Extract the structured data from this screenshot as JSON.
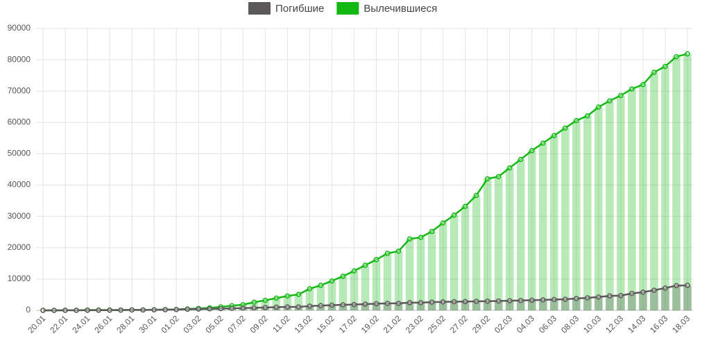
{
  "chart_data": {
    "type": "bar-line",
    "categories": [
      "20.01",
      null,
      "22.01",
      null,
      "24.01",
      null,
      "26.01",
      null,
      "28.01",
      null,
      "30.01",
      null,
      "01.02",
      null,
      "03.02",
      null,
      "05.02",
      null,
      "07.02",
      null,
      "09.02",
      null,
      "11.02",
      null,
      "13.02",
      null,
      "15.02",
      null,
      "17.02",
      null,
      "19.02",
      null,
      "21.02",
      null,
      "23.02",
      null,
      "25.02",
      null,
      "27.02",
      null,
      "29.02",
      null,
      "02.03",
      null,
      "04.03",
      null,
      "06.03",
      null,
      "08.03",
      null,
      "10.03",
      null,
      "12.03",
      null,
      "14.03",
      null,
      "16.03",
      null,
      "18.03"
    ],
    "series": [
      {
        "name": "Погибшие",
        "color": "#5b5858",
        "values": [
          0,
          0,
          17,
          18,
          26,
          42,
          56,
          82,
          131,
          133,
          171,
          213,
          259,
          362,
          426,
          492,
          564,
          634,
          719,
          806,
          906,
          1013,
          1113,
          1118,
          1371,
          1523,
          1666,
          1770,
          1868,
          2007,
          2122,
          2247,
          2251,
          2458,
          2469,
          2629,
          2708,
          2770,
          2814,
          2872,
          2941,
          2996,
          3085,
          3160,
          3254,
          3348,
          3460,
          3558,
          3802,
          3988,
          4262,
          4615,
          4720,
          5404,
          5819,
          6440,
          7126,
          7905,
          8000
        ]
      },
      {
        "name": "Вылечившиеся",
        "color": "#13b913",
        "values": [
          0,
          0,
          28,
          30,
          100,
          100,
          100,
          100,
          150,
          150,
          200,
          250,
          300,
          450,
          600,
          800,
          1100,
          1500,
          1800,
          2600,
          3200,
          3900,
          4600,
          5100,
          6900,
          8000,
          9400,
          10900,
          12600,
          14400,
          16200,
          18200,
          18900,
          22800,
          23300,
          25200,
          27900,
          30400,
          33200,
          36700,
          42000,
          42700,
          45500,
          48200,
          51000,
          53400,
          55800,
          58200,
          60600,
          62100,
          64900,
          66900,
          68600,
          70700,
          72100,
          76000,
          77900,
          81000,
          81900
        ]
      }
    ],
    "ylim": [
      0,
      90000
    ],
    "yticks": [
      0,
      10000,
      20000,
      30000,
      40000,
      50000,
      60000,
      70000,
      80000,
      90000
    ],
    "grid": true,
    "legend": "top"
  }
}
